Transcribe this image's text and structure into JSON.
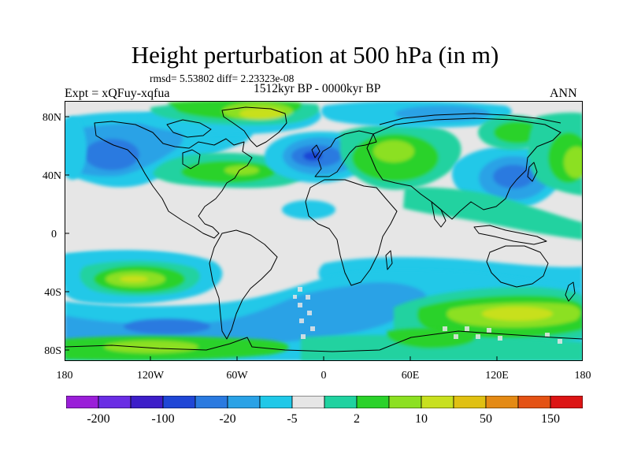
{
  "header": {
    "title": "Height perturbation at 500 hPa (in m)",
    "stats": "rmsd= 5.53802 diff= 2.23323e-08",
    "experiment": "Expt = xQFuy-xqfua",
    "period": "1512kyr BP - 0000kyr BP",
    "season": "ANN"
  },
  "map": {
    "lat_labels": [
      "80N",
      "40N",
      "0",
      "40S",
      "80S"
    ],
    "lon_labels": [
      "180",
      "120W",
      "60W",
      "0",
      "60E",
      "120E",
      "180"
    ],
    "background_color": "#e6e6e6"
  },
  "colorbar": {
    "colors": [
      "#9a1ed8",
      "#6a2de4",
      "#3d1ec9",
      "#1f46d6",
      "#2a7ae0",
      "#2aa2e6",
      "#20c8e8",
      "#e6e6e6",
      "#20d2a0",
      "#2ad22a",
      "#8ce021",
      "#c8e01f",
      "#e0c012",
      "#e48a14",
      "#e45214",
      "#dc1414"
    ],
    "labels": [
      "-200",
      "-100",
      "-20",
      "-5",
      "2",
      "10",
      "50",
      "150"
    ]
  }
}
